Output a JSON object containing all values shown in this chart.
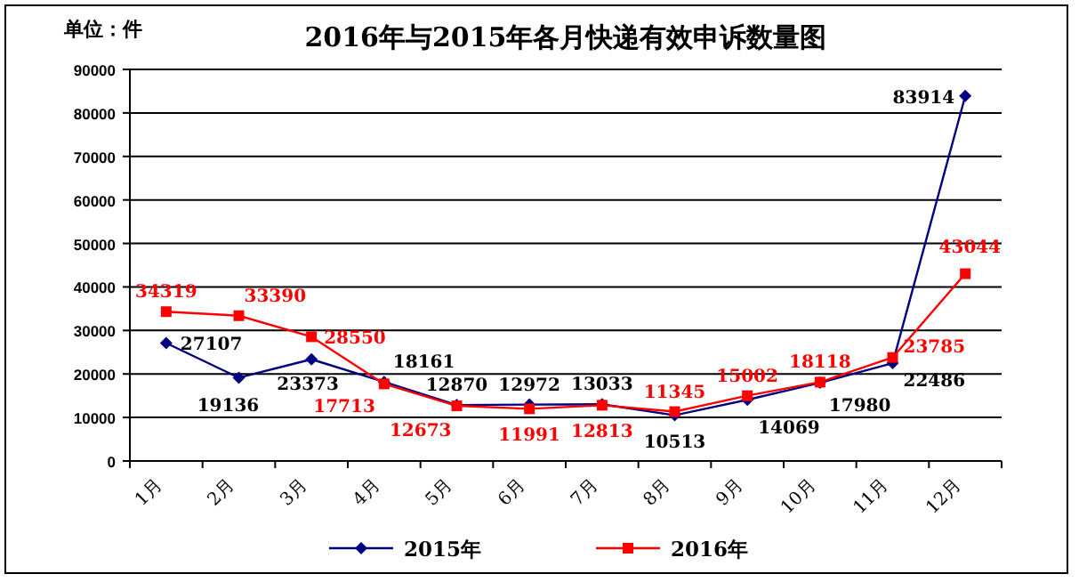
{
  "chart_data": {
    "type": "line",
    "title": "2016年与2015年各月快递有效申诉数量图",
    "annotations": [
      "单位：件"
    ],
    "categories": [
      "1月",
      "2月",
      "3月",
      "4月",
      "5月",
      "6月",
      "7月",
      "8月",
      "9月",
      "10月",
      "11月",
      "12月"
    ],
    "series": [
      {
        "name": "2015年",
        "color": "#000080",
        "marker": "diamond",
        "values": [
          27107,
          19136,
          23373,
          18161,
          12870,
          12972,
          13033,
          10513,
          14069,
          17980,
          22486,
          83914
        ]
      },
      {
        "name": "2016年",
        "color": "#ff0000",
        "marker": "square",
        "values": [
          34319,
          33390,
          28550,
          17713,
          12673,
          11991,
          12813,
          11345,
          15002,
          18118,
          23785,
          43044
        ]
      }
    ],
    "ylim": [
      0,
      90000
    ],
    "yticks": [
      0,
      10000,
      20000,
      30000,
      40000,
      50000,
      60000,
      70000,
      80000,
      90000
    ],
    "grid": "y",
    "legend": "bottom",
    "data_labels": true,
    "line_style": "solid"
  }
}
